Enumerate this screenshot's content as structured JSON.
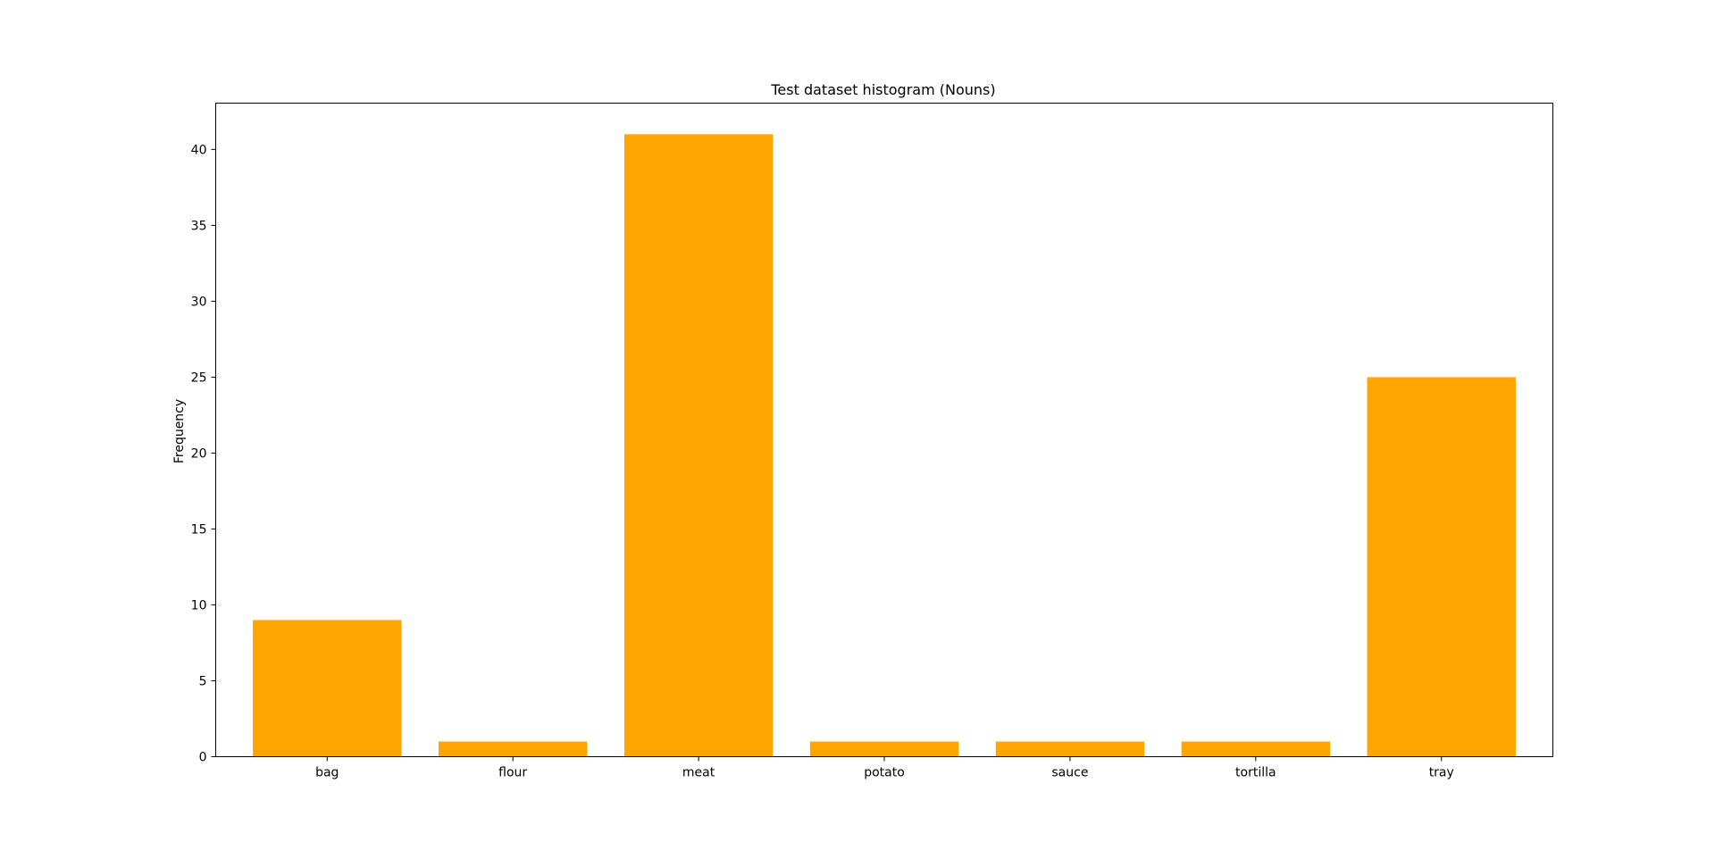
{
  "colors": {
    "bar": "#ffa500",
    "axis": "#000000",
    "background": "#ffffff"
  },
  "chart_data": {
    "type": "bar",
    "title": "Test dataset histogram (Nouns)",
    "xlabel": "",
    "ylabel": "Frequency",
    "categories": [
      "bag",
      "flour",
      "meat",
      "potato",
      "sauce",
      "tortilla",
      "tray"
    ],
    "values": [
      9,
      1,
      41,
      1,
      1,
      1,
      25
    ],
    "ylim": [
      0,
      43.05
    ],
    "yticks": [
      0,
      5,
      10,
      15,
      20,
      25,
      30,
      35,
      40
    ],
    "grid": false,
    "legend": "none"
  }
}
